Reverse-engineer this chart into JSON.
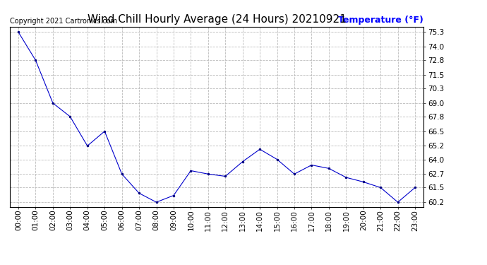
{
  "title": "Wind Chill Hourly Average (24 Hours) 20210921",
  "ylabel": "Temperature (°F)",
  "copyright_text": "Copyright 2021 Cartronics.com",
  "background_color": "#ffffff",
  "line_color": "#0000cc",
  "marker_color": "#000080",
  "hours": [
    0,
    1,
    2,
    3,
    4,
    5,
    6,
    7,
    8,
    9,
    10,
    11,
    12,
    13,
    14,
    15,
    16,
    17,
    18,
    19,
    20,
    21,
    22,
    23
  ],
  "x_labels": [
    "00:00",
    "01:00",
    "02:00",
    "03:00",
    "04:00",
    "05:00",
    "06:00",
    "07:00",
    "08:00",
    "09:00",
    "10:00",
    "11:00",
    "12:00",
    "13:00",
    "14:00",
    "15:00",
    "16:00",
    "17:00",
    "18:00",
    "19:00",
    "20:00",
    "21:00",
    "22:00",
    "23:00"
  ],
  "values": [
    75.3,
    72.8,
    69.0,
    67.8,
    65.2,
    66.5,
    62.7,
    61.0,
    60.2,
    60.8,
    63.0,
    62.7,
    62.5,
    63.8,
    64.9,
    64.0,
    62.7,
    63.5,
    63.2,
    62.4,
    62.0,
    61.5,
    60.2,
    61.5
  ],
  "yticks": [
    60.2,
    61.5,
    62.7,
    64.0,
    65.2,
    66.5,
    67.8,
    69.0,
    70.3,
    71.5,
    72.8,
    74.0,
    75.3
  ],
  "ylim": [
    59.8,
    75.8
  ],
  "xlim": [
    -0.5,
    23.5
  ],
  "grid_color": "#bbbbbb",
  "title_fontsize": 11,
  "ylabel_fontsize": 9,
  "tick_fontsize": 7.5,
  "copyright_fontsize": 7,
  "ylabel_color": "#0000ff",
  "title_color": "#000000"
}
